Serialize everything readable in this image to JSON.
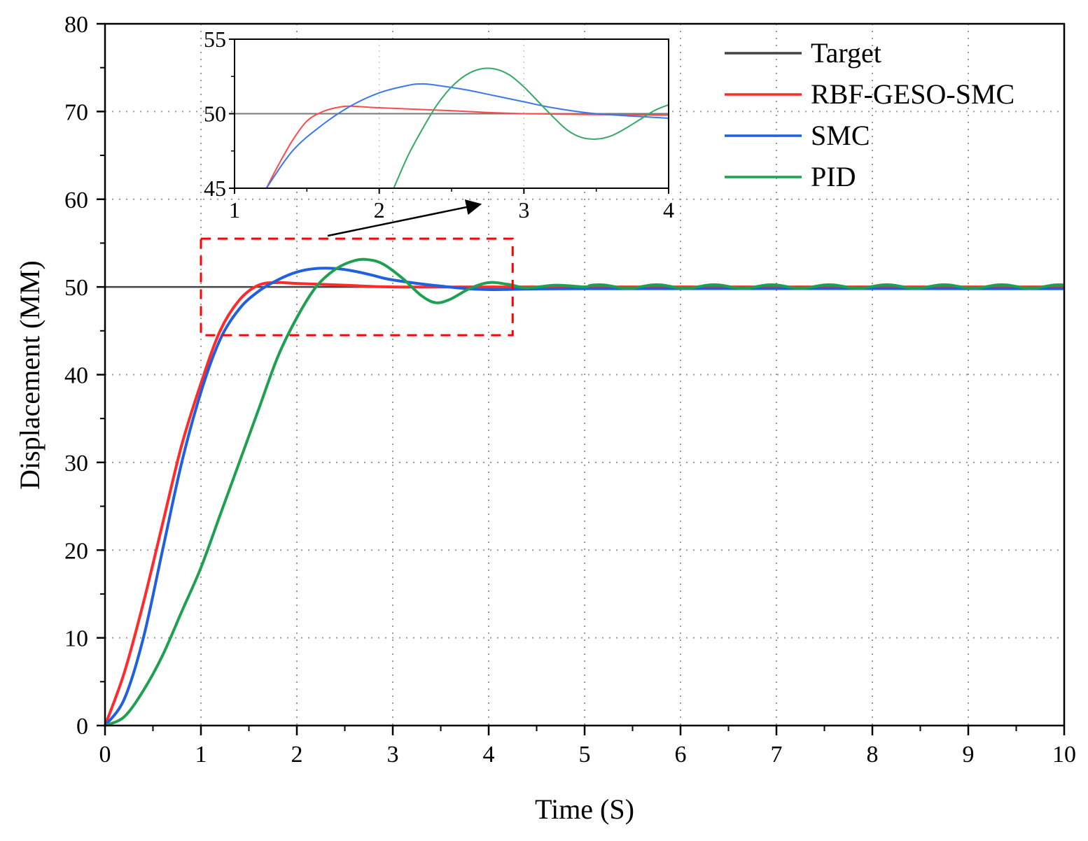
{
  "chart_data": [
    {
      "type": "line",
      "name": "main",
      "xlabel": "Time (S)",
      "ylabel": "Displacement (MM)",
      "xlim": [
        0,
        10
      ],
      "ylim": [
        0,
        80
      ],
      "xticks": [
        0,
        1,
        2,
        3,
        4,
        5,
        6,
        7,
        8,
        9,
        10
      ],
      "yticks": [
        0,
        10,
        20,
        30,
        40,
        50,
        60,
        70,
        80
      ],
      "grid": "dotted",
      "legend": {
        "position": "top-right",
        "entries": [
          "Target",
          "RBF-GESO-SMC",
          "SMC",
          "PID"
        ]
      },
      "series": [
        {
          "name": "Target",
          "color": "#444444",
          "points": [
            [
              0,
              50
            ],
            [
              10,
              50
            ]
          ]
        },
        {
          "name": "RBF-GESO-SMC",
          "color": "#ff2a2a",
          "points": [
            [
              0,
              0
            ],
            [
              0.2,
              6
            ],
            [
              0.4,
              14
            ],
            [
              0.6,
              23
            ],
            [
              0.8,
              32
            ],
            [
              1.0,
              39
            ],
            [
              1.2,
              45
            ],
            [
              1.4,
              48.5
            ],
            [
              1.6,
              50.2
            ],
            [
              1.8,
              50.5
            ],
            [
              2.0,
              50.4
            ],
            [
              2.5,
              50.2
            ],
            [
              3.0,
              50.0
            ],
            [
              4.0,
              50.0
            ],
            [
              10,
              50.0
            ]
          ]
        },
        {
          "name": "SMC",
          "color": "#1f5fe0",
          "points": [
            [
              0,
              0
            ],
            [
              0.2,
              3
            ],
            [
              0.4,
              10
            ],
            [
              0.6,
              20
            ],
            [
              0.8,
              30
            ],
            [
              1.0,
              38
            ],
            [
              1.2,
              44
            ],
            [
              1.4,
              47.5
            ],
            [
              1.6,
              49.5
            ],
            [
              1.8,
              50.8
            ],
            [
              2.0,
              51.7
            ],
            [
              2.2,
              52.1
            ],
            [
              2.4,
              52.1
            ],
            [
              2.6,
              51.8
            ],
            [
              2.8,
              51.3
            ],
            [
              3.0,
              50.8
            ],
            [
              3.5,
              50.1
            ],
            [
              4.0,
              49.7
            ],
            [
              5.0,
              49.8
            ],
            [
              10,
              49.8
            ]
          ]
        },
        {
          "name": "PID",
          "color": "#1fa050",
          "points": [
            [
              0,
              0
            ],
            [
              0.2,
              1
            ],
            [
              0.4,
              4
            ],
            [
              0.6,
              8
            ],
            [
              0.8,
              13
            ],
            [
              1.0,
              18
            ],
            [
              1.2,
              24
            ],
            [
              1.4,
              30
            ],
            [
              1.6,
              36
            ],
            [
              1.8,
              42
            ],
            [
              2.0,
              46.5
            ],
            [
              2.2,
              50
            ],
            [
              2.4,
              52
            ],
            [
              2.6,
              53
            ],
            [
              2.75,
              53.1
            ],
            [
              2.9,
              52.6
            ],
            [
              3.1,
              51
            ],
            [
              3.3,
              49
            ],
            [
              3.45,
              48.2
            ],
            [
              3.6,
              48.6
            ],
            [
              3.8,
              49.8
            ],
            [
              4.0,
              50.5
            ],
            [
              4.2,
              50.3
            ],
            [
              4.4,
              49.9
            ],
            [
              4.7,
              50.2
            ],
            [
              5.0,
              50.0
            ]
          ]
        }
      ],
      "pid_oscillation": {
        "from": 5.0,
        "to": 10.0,
        "center": 50.05,
        "amplitude": 0.2,
        "period": 0.6
      },
      "annotations": [
        {
          "type": "dashed-rectangle",
          "color": "#ff0000",
          "x_range": [
            1.0,
            4.25
          ],
          "y_range": [
            44.5,
            55.5
          ]
        },
        {
          "type": "arrow",
          "color": "#000000",
          "from": "zoom-box",
          "to": "inset"
        }
      ]
    },
    {
      "type": "line",
      "name": "inset",
      "xlim": [
        1,
        4
      ],
      "ylim": [
        45,
        55
      ],
      "xticks": [
        1,
        2,
        3,
        4
      ],
      "yticks": [
        45,
        50,
        55
      ],
      "grid": "dotted",
      "series": [
        {
          "name": "Target",
          "color": "#777777",
          "points": [
            [
              1,
              50
            ],
            [
              4,
              50
            ]
          ]
        },
        {
          "name": "RBF-GESO-SMC",
          "color": "#ff4a4a",
          "points": [
            [
              1.22,
              45
            ],
            [
              1.3,
              46.5
            ],
            [
              1.4,
              48.2
            ],
            [
              1.5,
              49.5
            ],
            [
              1.6,
              50.1
            ],
            [
              1.7,
              50.4
            ],
            [
              1.8,
              50.5
            ],
            [
              2.0,
              50.4
            ],
            [
              2.5,
              50.2
            ],
            [
              3.0,
              50.0
            ],
            [
              4.0,
              49.9
            ]
          ]
        },
        {
          "name": "SMC",
          "color": "#3a78f0",
          "points": [
            [
              1.22,
              45
            ],
            [
              1.4,
              47.5
            ],
            [
              1.6,
              49.2
            ],
            [
              1.8,
              50.5
            ],
            [
              2.0,
              51.4
            ],
            [
              2.2,
              51.9
            ],
            [
              2.3,
              52.0
            ],
            [
              2.4,
              51.9
            ],
            [
              2.6,
              51.6
            ],
            [
              2.8,
              51.2
            ],
            [
              3.0,
              50.8
            ],
            [
              3.2,
              50.4
            ],
            [
              3.5,
              50.0
            ],
            [
              4.0,
              49.7
            ]
          ]
        },
        {
          "name": "PID",
          "color": "#33aa66",
          "points": [
            [
              2.1,
              45
            ],
            [
              2.2,
              47.2
            ],
            [
              2.3,
              49.0
            ],
            [
              2.4,
              50.6
            ],
            [
              2.5,
              51.8
            ],
            [
              2.6,
              52.6
            ],
            [
              2.7,
              53.0
            ],
            [
              2.8,
              53.0
            ],
            [
              2.9,
              52.6
            ],
            [
              3.0,
              51.8
            ],
            [
              3.1,
              50.8
            ],
            [
              3.2,
              49.8
            ],
            [
              3.3,
              48.9
            ],
            [
              3.4,
              48.4
            ],
            [
              3.5,
              48.3
            ],
            [
              3.6,
              48.5
            ],
            [
              3.7,
              49.0
            ],
            [
              3.8,
              49.6
            ],
            [
              3.9,
              50.2
            ],
            [
              4.0,
              50.6
            ]
          ]
        }
      ]
    }
  ]
}
